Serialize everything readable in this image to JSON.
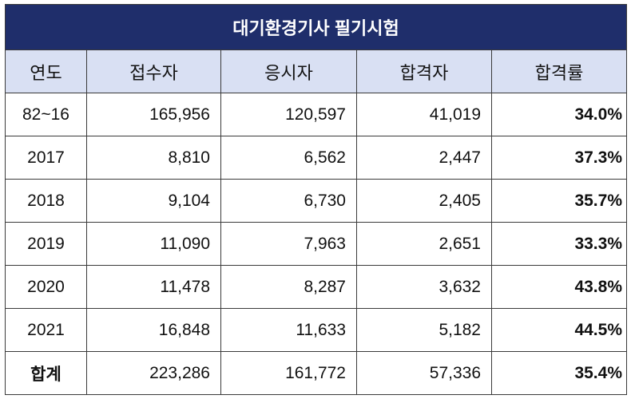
{
  "colors": {
    "title_bg": "#1f2e6b",
    "title_text": "#ffffff",
    "header_bg": "#d9e0f3",
    "border": "#3a3a3a",
    "text": "#111111"
  },
  "chart_data": {
    "type": "table",
    "title": "대기환경기사 필기시험",
    "columns": [
      "연도",
      "접수자",
      "응시자",
      "합격자",
      "합격률"
    ],
    "rows": [
      [
        "82~16",
        "165,956",
        "120,597",
        "41,019",
        "34.0%"
      ],
      [
        "2017",
        "8,810",
        "6,562",
        "2,447",
        "37.3%"
      ],
      [
        "2018",
        "9,104",
        "6,730",
        "2,405",
        "35.7%"
      ],
      [
        "2019",
        "11,090",
        "7,963",
        "2,651",
        "33.3%"
      ],
      [
        "2020",
        "11,478",
        "8,287",
        "3,632",
        "43.8%"
      ],
      [
        "2021",
        "16,848",
        "11,633",
        "5,182",
        "44.5%"
      ],
      [
        "합계",
        "223,286",
        "161,772",
        "57,336",
        "35.4%"
      ]
    ]
  }
}
